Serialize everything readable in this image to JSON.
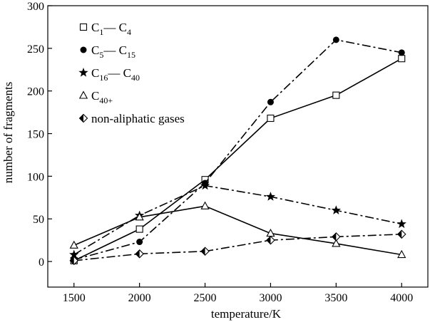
{
  "chart_data": {
    "type": "line",
    "x": [
      1500,
      2000,
      2500,
      3000,
      3500,
      4000
    ],
    "xlabel": "temperature/K",
    "ylabel": "number of fragments",
    "xlim": [
      1300,
      4200
    ],
    "ylim": [
      -30,
      300
    ],
    "xticks": [
      1500,
      2000,
      2500,
      3000,
      3500,
      4000
    ],
    "yticks": [
      0,
      50,
      100,
      150,
      200,
      250,
      300
    ],
    "grid": false,
    "legend_position": "top-left",
    "series": [
      {
        "name": "C1—C4",
        "legend_main": "C",
        "legend_sub1": "1",
        "legend_mid": "— C",
        "legend_sub2": "4",
        "marker": "open-square",
        "line": "solid",
        "values": [
          1,
          38,
          96,
          168,
          195,
          238
        ]
      },
      {
        "name": "C5—C15",
        "legend_main": "C",
        "legend_sub1": "5",
        "legend_mid": "— C",
        "legend_sub2": "15",
        "marker": "filled-circle",
        "line": "dashdot",
        "values": [
          2,
          23,
          92,
          187,
          260,
          245
        ]
      },
      {
        "name": "C16—C40",
        "legend_main": "C",
        "legend_sub1": "16",
        "legend_mid": "— C",
        "legend_sub2": "40",
        "marker": "filled-star",
        "line": "dashdot",
        "values": [
          8,
          54,
          89,
          76,
          60,
          44
        ]
      },
      {
        "name": "C40+",
        "legend_main": "C",
        "legend_sub1": "40+",
        "legend_mid": "",
        "legend_sub2": "",
        "marker": "open-triangle",
        "line": "solid",
        "values": [
          19,
          52,
          65,
          33,
          21,
          8
        ]
      },
      {
        "name": "non-aliphatic gases",
        "legend_main": "non-aliphatic gases",
        "legend_sub1": "",
        "legend_mid": "",
        "legend_sub2": "",
        "marker": "half-diamond",
        "line": "dashdot",
        "values": [
          1,
          9,
          12,
          25,
          29,
          32
        ]
      }
    ]
  }
}
